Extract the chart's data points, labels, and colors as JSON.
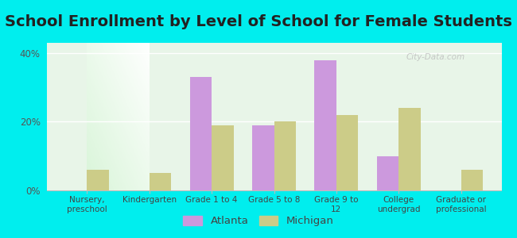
{
  "title": "School Enrollment by Level of School for Female Students",
  "categories": [
    "Nursery,\npreschool",
    "Kindergarten",
    "Grade 1 to 4",
    "Grade 5 to 8",
    "Grade 9 to\n12",
    "College\nundergrad",
    "Graduate or\nprofessional"
  ],
  "atlanta": [
    0,
    0,
    33,
    19,
    38,
    10,
    0
  ],
  "michigan": [
    6,
    5,
    19,
    20,
    22,
    24,
    6
  ],
  "atlanta_color": "#cc99dd",
  "michigan_color": "#cccc88",
  "background_color": "#00eeee",
  "ylabel_ticks": [
    0,
    20,
    40
  ],
  "ylabel_labels": [
    "0%",
    "20%",
    "40%"
  ],
  "ylim": [
    0,
    43
  ],
  "legend_atlanta": "Atlanta",
  "legend_michigan": "Michigan",
  "title_fontsize": 14,
  "bar_width": 0.35
}
